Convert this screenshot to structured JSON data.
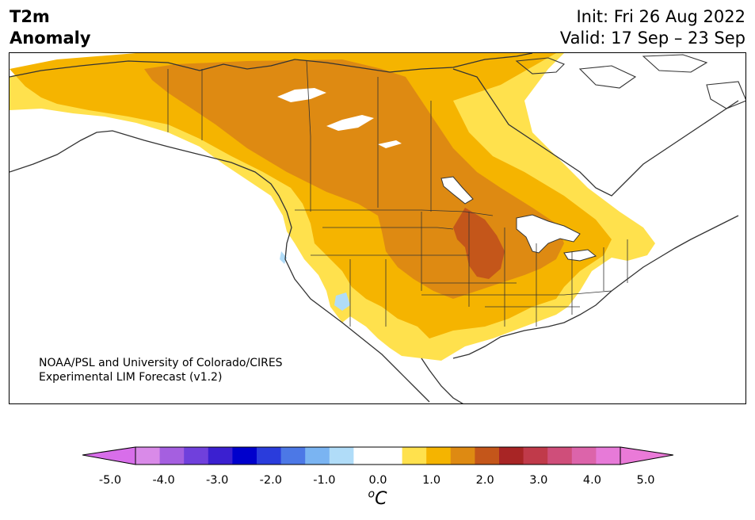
{
  "title": {
    "line1": "T2m",
    "line2": "Anomaly"
  },
  "forecast": {
    "init": "Init: Fri 26 Aug 2022",
    "valid": "Valid: 17 Sep – 23 Sep"
  },
  "credit": {
    "line1": "NOAA/PSL and University of Colorado/CIRES",
    "line2": "Experimental LIM Forecast (v1.2)"
  },
  "colorbar": {
    "unit_base": "C",
    "unit_sup": "o",
    "ticks": [
      "-5.0",
      "-4.0",
      "-3.0",
      "-2.0",
      "-1.0",
      "0.0",
      "1.0",
      "2.0",
      "3.0",
      "4.0",
      "5.0"
    ],
    "colors": [
      "#d98ae8",
      "#a55fe0",
      "#7040dc",
      "#3b20d0",
      "#0000cc",
      "#2a3cdc",
      "#4c78e6",
      "#7ab4f2",
      "#b0dcf8",
      "#ffffff",
      "#ffffff",
      "#ffe14d",
      "#f5b400",
      "#de8a12",
      "#c4561a",
      "#a82525",
      "#c03a4a",
      "#cf4e7a",
      "#dc64aa",
      "#e77ad8"
    ],
    "extend_low_color": "#d86eea",
    "extend_high_color": "#ea7ad8"
  },
  "map": {
    "region": "North America",
    "anomaly_colors": {
      "lt05": "#ffe14d",
      "p10": "#f5b400",
      "p15": "#de8a12",
      "p20": "#c4561a",
      "neg05": "#b0dcf8"
    }
  }
}
